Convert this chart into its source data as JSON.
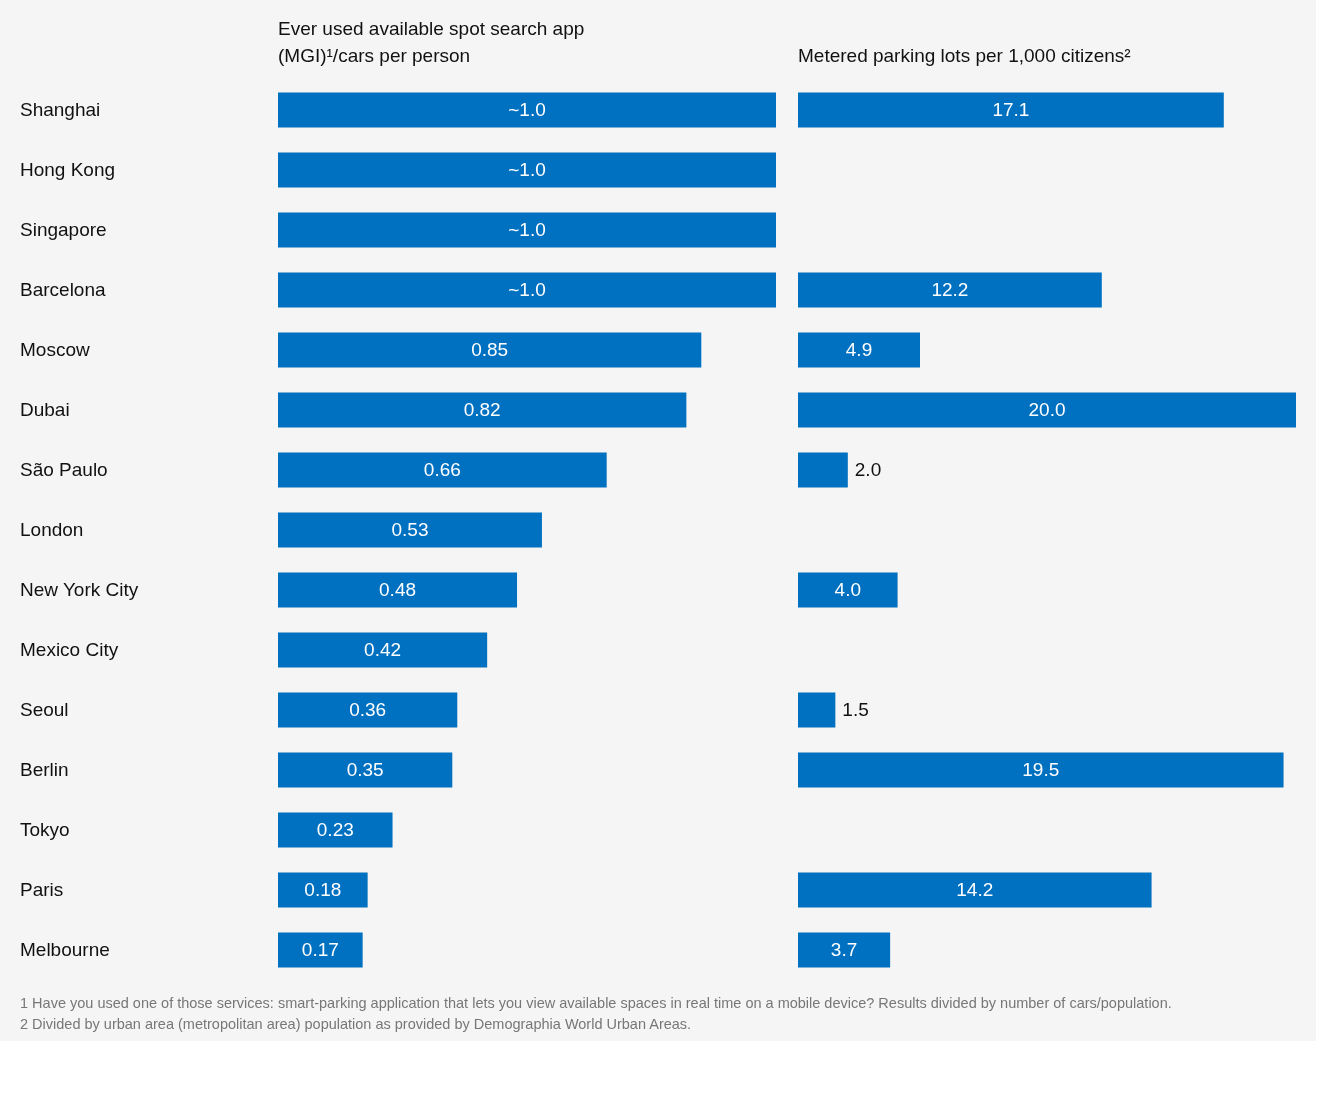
{
  "chart_data": [
    {
      "type": "bar",
      "orientation": "horizontal",
      "title": "Ever used available spot search app (MGI)¹/cars per person",
      "tick_labels": "y",
      "categories": [
        "Shanghai",
        "Hong Kong",
        "Singapore",
        "Barcelona",
        "Moscow",
        "Dubai",
        "São Paulo",
        "London",
        "New York City",
        "Mexico City",
        "Seoul",
        "Berlin",
        "Tokyo",
        "Paris",
        "Melbourne"
      ],
      "values": [
        1.0,
        1.0,
        1.0,
        1.0,
        0.85,
        0.82,
        0.66,
        0.53,
        0.48,
        0.42,
        0.36,
        0.35,
        0.23,
        0.18,
        0.17
      ],
      "value_labels": [
        "~1.0",
        "~1.0",
        "~1.0",
        "~1.0",
        "0.85",
        "0.82",
        "0.66",
        "0.53",
        "0.48",
        "0.42",
        "0.36",
        "0.35",
        "0.23",
        "0.18",
        "0.17"
      ],
      "color": "#0070c0",
      "annotations": [
        "1 Have you used one of those services: smart-parking application that lets you view available spaces in real time on a mobile device? Results divided by number of cars/population.",
        "2 Divided by urban area (metropolitan area) population as provided by Demographia World Urban Areas."
      ]
    },
    {
      "type": "bar",
      "orientation": "horizontal",
      "title": "Metered parking lots per 1,000 citizens²",
      "tick_labels": false,
      "categories": [
        "Shanghai",
        "Hong Kong",
        "Singapore",
        "Barcelona",
        "Moscow",
        "Dubai",
        "São Paulo",
        "London",
        "New York City",
        "Mexico City",
        "Seoul",
        "Berlin",
        "Tokyo",
        "Paris",
        "Melbourne"
      ],
      "values": [
        17.1,
        null,
        null,
        12.2,
        4.9,
        20.0,
        2.0,
        null,
        4.0,
        null,
        1.5,
        19.5,
        null,
        14.2,
        3.7
      ],
      "value_labels": [
        "17.1",
        null,
        null,
        "12.2",
        "4.9",
        "20.0",
        "2.0",
        null,
        "4.0",
        null,
        "1.5",
        "19.5",
        null,
        "14.2",
        "3.7"
      ],
      "color": "#0070c0"
    }
  ]
}
